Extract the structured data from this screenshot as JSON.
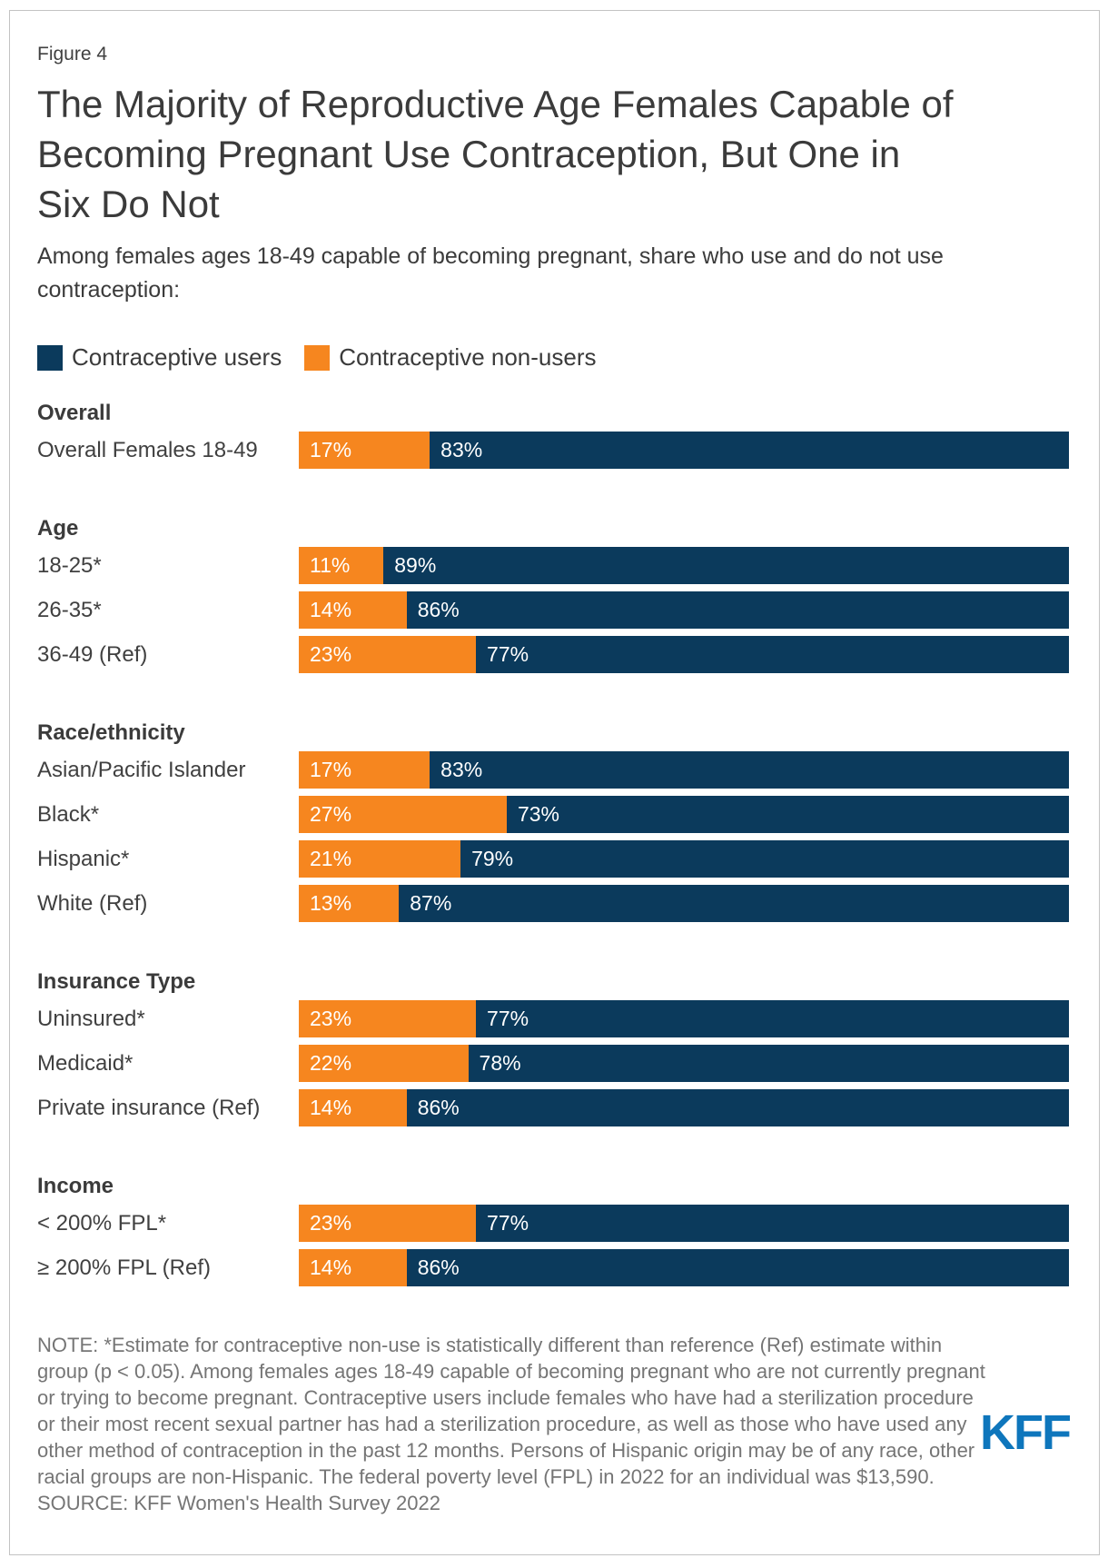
{
  "figure_label": "Figure 4",
  "title": "The Majority of Reproductive Age Females Capable of Becoming Pregnant Use Contraception, But One in Six Do Not",
  "subtitle": "Among females ages 18-49 capable of becoming pregnant, share who use and do not use contraception:",
  "legend": [
    {
      "key": "users",
      "label": "Contraceptive users",
      "color": "#0b3a5c"
    },
    {
      "key": "non_users",
      "label": "Contraceptive non-users",
      "color": "#f6861f"
    }
  ],
  "colors": {
    "users": "#0b3a5c",
    "non_users": "#f6861f",
    "logo_blue": "#0e76bc",
    "value_text": "#ffffff"
  },
  "chart_data": {
    "type": "bar",
    "orientation": "horizontal",
    "stacked": true,
    "unit": "%",
    "xlim": [
      0,
      100
    ],
    "segment_order": [
      "non_users",
      "users"
    ],
    "series_names": {
      "non_users": "Contraceptive non-users",
      "users": "Contraceptive users"
    },
    "groups": [
      {
        "header": "Overall",
        "rows": [
          {
            "label": "Overall Females 18-49",
            "non_users": 17,
            "users": 83
          }
        ]
      },
      {
        "header": "Age",
        "rows": [
          {
            "label": "18-25*",
            "non_users": 11,
            "users": 89
          },
          {
            "label": "26-35*",
            "non_users": 14,
            "users": 86
          },
          {
            "label": "36-49 (Ref)",
            "non_users": 23,
            "users": 77
          }
        ]
      },
      {
        "header": "Race/ethnicity",
        "rows": [
          {
            "label": "Asian/Pacific Islander",
            "non_users": 17,
            "users": 83
          },
          {
            "label": "Black*",
            "non_users": 27,
            "users": 73
          },
          {
            "label": "Hispanic*",
            "non_users": 21,
            "users": 79
          },
          {
            "label": "White (Ref)",
            "non_users": 13,
            "users": 87
          }
        ]
      },
      {
        "header": "Insurance Type",
        "rows": [
          {
            "label": "Uninsured*",
            "non_users": 23,
            "users": 77
          },
          {
            "label": "Medicaid*",
            "non_users": 22,
            "users": 78
          },
          {
            "label": "Private insurance (Ref)",
            "non_users": 14,
            "users": 86
          }
        ]
      },
      {
        "header": "Income",
        "rows": [
          {
            "label": "< 200% FPL*",
            "non_users": 23,
            "users": 77
          },
          {
            "label": "≥ 200% FPL (Ref)",
            "non_users": 14,
            "users": 86
          }
        ]
      }
    ]
  },
  "note": "NOTE: *Estimate for contraceptive non-use is statistically different than reference (Ref) estimate within group (p < 0.05). Among females ages 18-49 capable of becoming pregnant who are not currently pregnant or trying to become pregnant. Contraceptive users include females who have had a sterilization procedure or their most recent sexual partner has had a sterilization procedure, as well as those who have used any other method of contraception in the past 12 months. Persons of Hispanic origin may be of any race, other racial groups are non-Hispanic. The federal poverty level (FPL) in 2022 for an individual was $13,590.",
  "source": "SOURCE: KFF Women's Health Survey 2022",
  "logo_text": "KFF"
}
